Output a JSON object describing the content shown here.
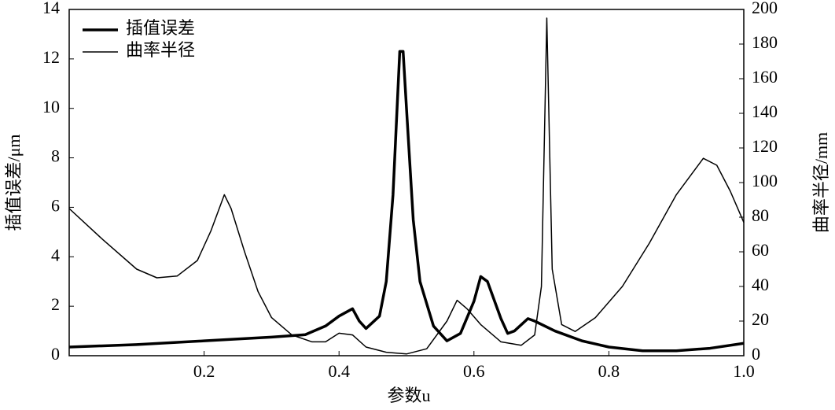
{
  "chart_data": {
    "type": "line",
    "xlabel": "参数u",
    "ylabel": "插值误差/μm",
    "y2label": "曲率半径/mm",
    "xlim": [
      0,
      1
    ],
    "xticks": [
      0.2,
      0.4,
      0.6,
      0.8,
      {
        "value": 1,
        "label": "1.0"
      }
    ],
    "ylim": [
      0,
      14
    ],
    "yticks": [
      0,
      2,
      4,
      6,
      8,
      10,
      12,
      14
    ],
    "y2lim": [
      0,
      200
    ],
    "y2ticks": [
      0,
      20,
      40,
      60,
      80,
      100,
      120,
      140,
      160,
      180,
      200
    ],
    "legend": "upper left",
    "series": [
      {
        "name": "插值误差",
        "color": "#000000",
        "axis": "y",
        "x": [
          0,
          0.1,
          0.2,
          0.3,
          0.35,
          0.38,
          0.4,
          0.42,
          0.43,
          0.44,
          0.46,
          0.47,
          0.48,
          0.49,
          0.495,
          0.5,
          0.51,
          0.52,
          0.54,
          0.56,
          0.58,
          0.6,
          0.61,
          0.62,
          0.64,
          0.65,
          0.66,
          0.68,
          0.69,
          0.72,
          0.76,
          0.8,
          0.85,
          0.9,
          0.95,
          1.0
        ],
        "values": [
          0.35,
          0.45,
          0.6,
          0.75,
          0.85,
          1.2,
          1.6,
          1.9,
          1.4,
          1.1,
          1.6,
          3.0,
          6.5,
          12.3,
          12.3,
          10,
          5.5,
          3,
          1.2,
          0.6,
          0.9,
          2.2,
          3.2,
          3.0,
          1.5,
          0.9,
          1.0,
          1.5,
          1.4,
          1.0,
          0.6,
          0.35,
          0.2,
          0.2,
          0.3,
          0.5
        ]
      },
      {
        "name": "曲率半径",
        "color": "#000000",
        "axis": "y2",
        "x": [
          0,
          0.05,
          0.1,
          0.13,
          0.16,
          0.19,
          0.21,
          0.23,
          0.24,
          0.26,
          0.28,
          0.3,
          0.33,
          0.36,
          0.38,
          0.4,
          0.42,
          0.44,
          0.47,
          0.5,
          0.53,
          0.56,
          0.575,
          0.59,
          0.61,
          0.64,
          0.67,
          0.69,
          0.7,
          0.708,
          0.716,
          0.73,
          0.75,
          0.78,
          0.82,
          0.86,
          0.9,
          0.94,
          0.96,
          0.98,
          1.0
        ],
        "values": [
          85,
          67,
          50,
          45,
          46,
          55,
          72,
          93,
          85,
          60,
          37,
          22,
          12,
          8,
          8,
          13,
          12,
          5,
          2,
          1,
          4,
          20,
          32,
          27,
          18,
          8,
          6,
          12,
          40,
          195,
          50,
          18,
          14,
          22,
          40,
          65,
          93,
          114,
          110,
          95,
          77
        ]
      }
    ]
  }
}
